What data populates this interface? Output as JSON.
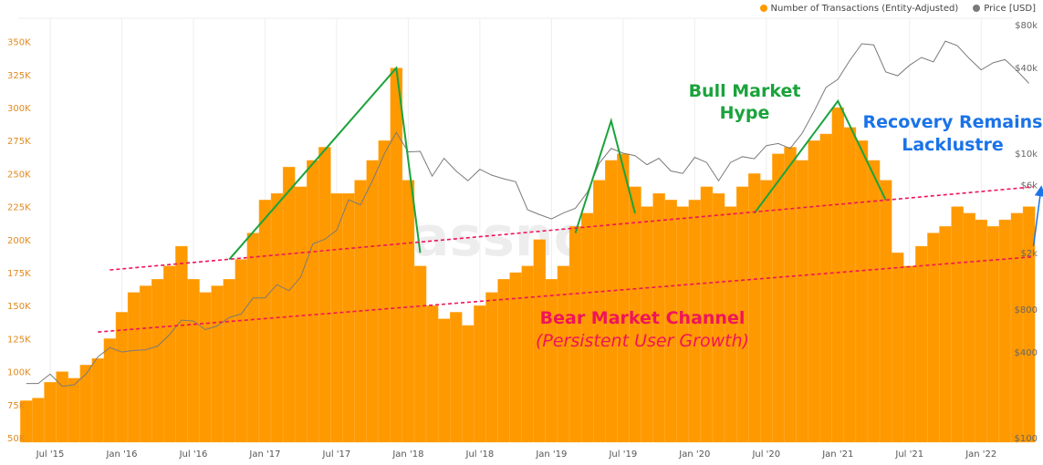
{
  "chart_data": {
    "type": "bar+line",
    "legend_placement": "top-right",
    "legend": [
      "Number of Transactions (Entity-Adjusted)",
      "Price [USD]"
    ],
    "colors": {
      "transactions": "#ff9900",
      "price": "#7a7a7a",
      "bull": "#1aa33c",
      "bear": "#f0145a",
      "recovery": "#1a73e8"
    },
    "x_ticks": [
      "Jul '15",
      "Jan '16",
      "Jul '16",
      "Jan '17",
      "Jul '17",
      "Jan '18",
      "Jul '18",
      "Jan '19",
      "Jul '19",
      "Jan '20",
      "Jul '20",
      "Jan '21",
      "Jul '21",
      "Jan '22"
    ],
    "y_left_ticks": [
      "50K",
      "75K",
      "100K",
      "125K",
      "150K",
      "175K",
      "200K",
      "225K",
      "250K",
      "275K",
      "300K",
      "325K",
      "350K"
    ],
    "y_left_range": [
      50000,
      350000
    ],
    "y_right_ticks": [
      "$100",
      "$400",
      "$800",
      "$2k",
      "$6k",
      "$10k",
      "$40k",
      "$80k"
    ],
    "y_right_tick_values": [
      100,
      400,
      800,
      2000,
      6000,
      10000,
      40000,
      80000
    ],
    "y_right_scale": "log",
    "y_right_range": [
      100,
      80000
    ],
    "grid": "vertical",
    "months": [
      "2015-05",
      "2015-06",
      "2015-07",
      "2015-08",
      "2015-09",
      "2015-10",
      "2015-11",
      "2015-12",
      "2016-01",
      "2016-02",
      "2016-03",
      "2016-04",
      "2016-05",
      "2016-06",
      "2016-07",
      "2016-08",
      "2016-09",
      "2016-10",
      "2016-11",
      "2016-12",
      "2017-01",
      "2017-02",
      "2017-03",
      "2017-04",
      "2017-05",
      "2017-06",
      "2017-07",
      "2017-08",
      "2017-09",
      "2017-10",
      "2017-11",
      "2017-12",
      "2018-01",
      "2018-02",
      "2018-03",
      "2018-04",
      "2018-05",
      "2018-06",
      "2018-07",
      "2018-08",
      "2018-09",
      "2018-10",
      "2018-11",
      "2018-12",
      "2019-01",
      "2019-02",
      "2019-03",
      "2019-04",
      "2019-05",
      "2019-06",
      "2019-07",
      "2019-08",
      "2019-09",
      "2019-10",
      "2019-11",
      "2019-12",
      "2020-01",
      "2020-02",
      "2020-03",
      "2020-04",
      "2020-05",
      "2020-06",
      "2020-07",
      "2020-08",
      "2020-09",
      "2020-10",
      "2020-11",
      "2020-12",
      "2021-01",
      "2021-02",
      "2021-03",
      "2021-04",
      "2021-05",
      "2021-06",
      "2021-07",
      "2021-08",
      "2021-09",
      "2021-10",
      "2021-11",
      "2021-12",
      "2022-01",
      "2022-02",
      "2022-03",
      "2022-04",
      "2022-05"
    ],
    "series": [
      {
        "name": "Number of Transactions (Entity-Adjusted)",
        "axis": "left",
        "values": [
          78000,
          80000,
          92000,
          100000,
          95000,
          105000,
          110000,
          125000,
          145000,
          160000,
          165000,
          170000,
          180000,
          195000,
          170000,
          160000,
          165000,
          170000,
          185000,
          205000,
          230000,
          235000,
          255000,
          240000,
          260000,
          270000,
          235000,
          235000,
          245000,
          260000,
          275000,
          330000,
          245000,
          180000,
          150000,
          140000,
          145000,
          135000,
          150000,
          160000,
          170000,
          175000,
          180000,
          200000,
          170000,
          180000,
          210000,
          220000,
          245000,
          260000,
          265000,
          240000,
          225000,
          235000,
          230000,
          225000,
          230000,
          240000,
          235000,
          225000,
          240000,
          250000,
          245000,
          265000,
          270000,
          260000,
          275000,
          280000,
          300000,
          285000,
          275000,
          260000,
          245000,
          190000,
          180000,
          195000,
          205000,
          210000,
          225000,
          220000,
          215000,
          210000,
          215000,
          220000,
          225000
        ]
      },
      {
        "name": "Price [USD]",
        "axis": "right",
        "values": [
          240,
          240,
          280,
          230,
          235,
          280,
          370,
          430,
          400,
          410,
          415,
          440,
          530,
          670,
          660,
          575,
          610,
          700,
          740,
          960,
          960,
          1190,
          1080,
          1350,
          2300,
          2480,
          2870,
          4700,
          4340,
          6400,
          9900,
          14000,
          10200,
          10300,
          6900,
          9200,
          7500,
          6400,
          7700,
          7000,
          6600,
          6300,
          4000,
          3700,
          3450,
          3800,
          4100,
          5300,
          8500,
          10800,
          10000,
          9600,
          8300,
          9200,
          7500,
          7200,
          9350,
          8600,
          6400,
          8600,
          9450,
          9140,
          11300,
          11700,
          10800,
          13800,
          19700,
          29000,
          33100,
          45000,
          58800,
          57700,
          37300,
          35000,
          41500,
          47100,
          43800,
          61300,
          57000,
          46300,
          38500,
          43200,
          45500,
          38000,
          31000
        ]
      }
    ],
    "annotations": {
      "bull_lines": [
        [
          [
            "2016-10",
            185000
          ],
          [
            "2017-12",
            330000
          ],
          [
            "2018-02",
            190000
          ]
        ],
        [
          [
            "2019-03",
            205000
          ],
          [
            "2019-06",
            290000
          ],
          [
            "2019-08",
            220000
          ]
        ],
        [
          [
            "2020-06",
            220000
          ],
          [
            "2021-01",
            305000
          ],
          [
            "2021-05",
            230000
          ]
        ]
      ],
      "bear_lines": [
        [
          [
            "2015-12",
            177000
          ],
          [
            "2022-05",
            240000
          ]
        ],
        [
          [
            "2015-11",
            130000
          ],
          [
            "2022-05",
            187000
          ]
        ]
      ],
      "recovery_arrow": [
        [
          "2022-05",
          195000
        ],
        [
          "2022-05",
          237000
        ]
      ],
      "labels": {
        "bull": [
          "Bull Market",
          "Hype"
        ],
        "recovery": [
          "Recovery Remains",
          "Lacklustre"
        ],
        "bear": "Bear Market Channel",
        "bear_sub": "(Persistent User Growth)"
      }
    },
    "watermark": "glassnode"
  }
}
